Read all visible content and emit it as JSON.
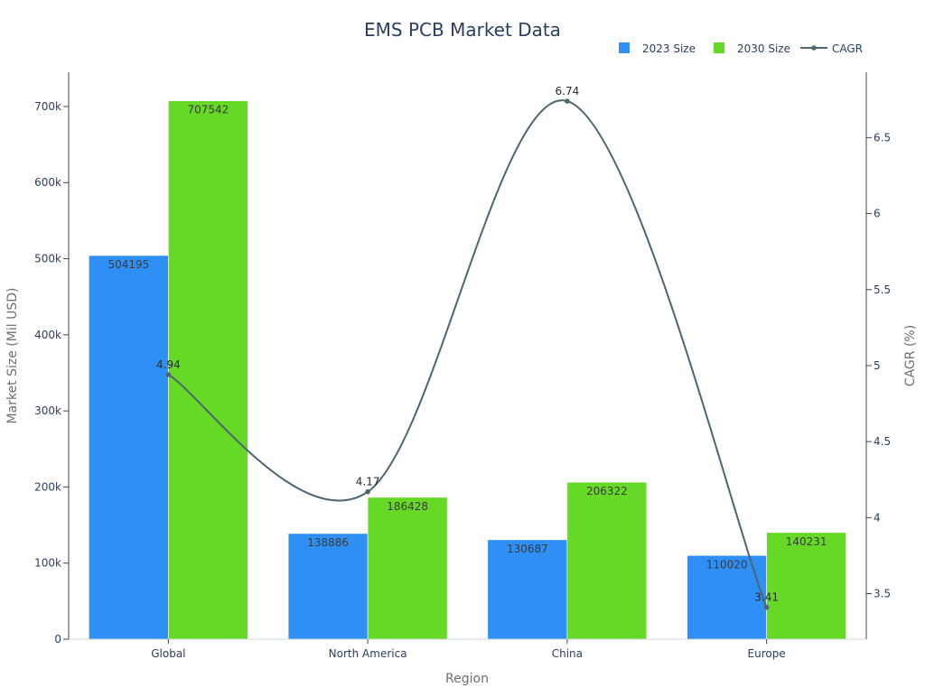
{
  "chart_data": {
    "type": "bar",
    "title": "EMS PCB Market Data",
    "xlabel": "Region",
    "ylabel": "Market Size (Mil USD)",
    "y2label": "CAGR (%)",
    "categories": [
      "Global",
      "North America",
      "China",
      "Europe"
    ],
    "series": [
      {
        "name": "2023 Size",
        "type": "bar",
        "axis": "left",
        "color": "#2e8ff5",
        "values": [
          504195,
          138886,
          130687,
          110020
        ]
      },
      {
        "name": "2030 Size",
        "type": "bar",
        "axis": "left",
        "color": "#66d926",
        "values": [
          707542,
          186428,
          206322,
          140231
        ]
      },
      {
        "name": "CAGR",
        "type": "line",
        "axis": "right",
        "smooth": true,
        "color": "#4d6671",
        "values": [
          4.94,
          4.17,
          6.74,
          3.41
        ]
      }
    ],
    "ylim": [
      0,
      745000
    ],
    "yticks": [
      0,
      100000,
      200000,
      300000,
      400000,
      500000,
      600000,
      700000
    ],
    "yticklabels": [
      "0",
      "100k",
      "200k",
      "300k",
      "400k",
      "500k",
      "600k",
      "700k"
    ],
    "y2lim": [
      3.2,
      6.93
    ],
    "y2ticks": [
      3.5,
      4,
      4.5,
      5,
      5.5,
      6,
      6.5
    ],
    "y2ticklabels": [
      "3.5",
      "4",
      "4.5",
      "5",
      "5.5",
      "6",
      "6.5"
    ],
    "legend": "top-right",
    "grid": false
  }
}
